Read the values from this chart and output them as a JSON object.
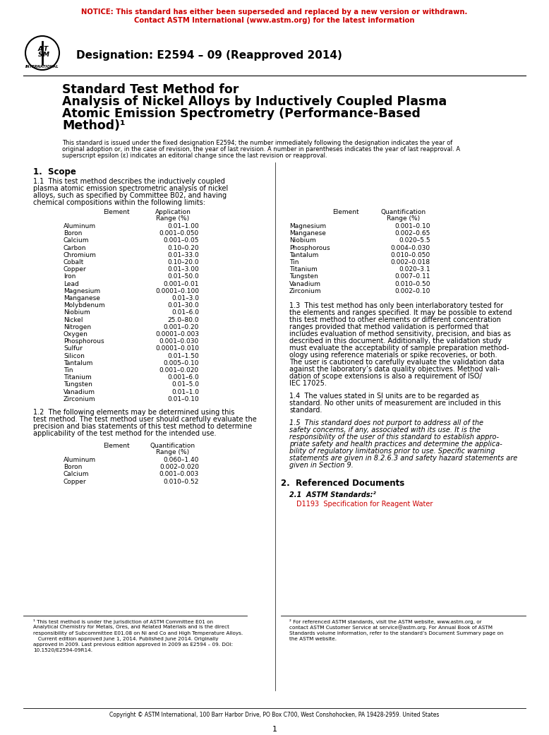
{
  "notice_text_line1": "NOTICE: This standard has either been superseded and replaced by a new version or withdrawn.",
  "notice_text_line2": "Contact ASTM International (www.astm.org) for the latest information",
  "notice_color": "#CC0000",
  "designation_text": "Designation: E2594 – 09 (Reapproved 2014)",
  "title_line1": "Standard Test Method for",
  "title_line2": "Analysis of Nickel Alloys by Inductively Coupled Plasma",
  "title_line3": "Atomic Emission Spectrometry (Performance-Based",
  "title_line4": "Method)¹",
  "intro_lines": [
    "This standard is issued under the fixed designation E2594; the number immediately following the designation indicates the year of",
    "original adoption or, in the case of revision, the year of last revision. A number in parentheses indicates the year of last reapproval. A",
    "superscript epsilon (ε) indicates an editorial change since the last revision or reapproval."
  ],
  "section1_title": "1.  Scope",
  "s11_lines": [
    "1.1  This test method describes the inductively coupled",
    "plasma atomic emission spectrometric analysis of nickel",
    "alloys, such as specified by Committee B02, and having",
    "chemical compositions within the following limits:"
  ],
  "table1_data": [
    [
      "Aluminum",
      "0.01–1.00"
    ],
    [
      "Boron",
      "0.001–0.050"
    ],
    [
      "Calcium",
      "0.001–0.05"
    ],
    [
      "Carbon",
      "0.10–0.20"
    ],
    [
      "Chromium",
      "0.01–33.0"
    ],
    [
      "Cobalt",
      "0.10–20.0"
    ],
    [
      "Copper",
      "0.01–3.00"
    ],
    [
      "Iron",
      "0.01–50.0"
    ],
    [
      "Lead",
      "0.001–0.01"
    ],
    [
      "Magnesium",
      "0.0001–0.100"
    ],
    [
      "Manganese",
      "0.01–3.0"
    ],
    [
      "Molybdenum",
      "0.01–30.0"
    ],
    [
      "Niobium",
      "0.01–6.0"
    ],
    [
      "Nickel",
      "25.0–80.0"
    ],
    [
      "Nitrogen",
      "0.001–0.20"
    ],
    [
      "Oxygen",
      "0.0001–0.003"
    ],
    [
      "Phosphorous",
      "0.001–0.030"
    ],
    [
      "Sulfur",
      "0.0001–0.010"
    ],
    [
      "Silicon",
      "0.01–1.50"
    ],
    [
      "Tantalum",
      "0.005–0.10"
    ],
    [
      "Tin",
      "0.001–0.020"
    ],
    [
      "Titanium",
      "0.001–6.0"
    ],
    [
      "Tungsten",
      "0.01–5.0"
    ],
    [
      "Vanadium",
      "0.01–1.0"
    ],
    [
      "Zirconium",
      "0.01–0.10"
    ]
  ],
  "s12_lines": [
    "1.2  The following elements may be determined using this",
    "test method. The test method user should carefully evaluate the",
    "precision and bias statements of this test method to determine",
    "applicability of the test method for the intended use."
  ],
  "table2_data": [
    [
      "Aluminum",
      "0.060–1.40"
    ],
    [
      "Boron",
      "0.002–0.020"
    ],
    [
      "Calcium",
      "0.001–0.003"
    ],
    [
      "Copper",
      "0.010–0.52"
    ]
  ],
  "table3_data": [
    [
      "Magnesium",
      "0.001–0.10"
    ],
    [
      "Manganese",
      "0.002–0.65"
    ],
    [
      "Niobium",
      "0.020–5.5"
    ],
    [
      "Phosphorous",
      "0.004–0.030"
    ],
    [
      "Tantalum",
      "0.010–0.050"
    ],
    [
      "Tin",
      "0.002–0.018"
    ],
    [
      "Titanium",
      "0.020–3.1"
    ],
    [
      "Tungsten",
      "0.007–0.11"
    ],
    [
      "Vanadium",
      "0.010–0.50"
    ],
    [
      "Zirconium",
      "0.002–0.10"
    ]
  ],
  "s13_lines": [
    "1.3  This test method has only been interlaboratory tested for",
    "the elements and ranges specified. It may be possible to extend",
    "this test method to other elements or different concentration",
    "ranges provided that method validation is performed that",
    "includes evaluation of method sensitivity, precision, and bias as",
    "described in this document. Additionally, the validation study",
    "must evaluate the acceptability of sample preparation method-",
    "ology using reference materials or spike recoveries, or both.",
    "The user is cautioned to carefully evaluate the validation data",
    "against the laboratory’s data quality objectives. Method vali-",
    "dation of scope extensions is also a requirement of ISO/",
    "IEC 17025."
  ],
  "s14_lines": [
    "1.4  The values stated in SI units are to be regarded as",
    "standard. No other units of measurement are included in this",
    "standard."
  ],
  "s15_lines": [
    "1.5  This standard does not purport to address all of the",
    "safety concerns, if any, associated with its use. It is the",
    "responsibility of the user of this standard to establish appro-",
    "priate safety and health practices and determine the applica-",
    "bility of regulatory limitations prior to use. Specific warning",
    "statements are given in 8.2.6.3 and safety hazard statements are",
    "given in Section 9."
  ],
  "section2_title": "2.  Referenced Documents",
  "section21_text": "2.1  ASTM Standards:²",
  "ref_text": "D1193  Specification for Reagent Water",
  "ref_color": "#CC0000",
  "fn1_lines": [
    "¹ This test method is under the jurisdiction of ASTM Committee E01 on",
    "Analytical Chemistry for Metals, Ores, and Related Materials and is the direct",
    "responsibility of Subcommittee E01.08 on Ni and Co and High Temperature Alloys.",
    "   Current edition approved June 1, 2014. Published June 2014. Originally",
    "approved in 2009. Last previous edition approved in 2009 as E2594 – 09. DOI:",
    "10.1520/E2594-09R14."
  ],
  "fn2_lines": [
    "² For referenced ASTM standards, visit the ASTM website, www.astm.org, or",
    "contact ASTM Customer Service at service@astm.org. For Annual Book of ASTM",
    "Standards volume information, refer to the standard’s Document Summary page on",
    "the ASTM website."
  ],
  "copyright_text": "Copyright © ASTM International, 100 Barr Harbor Drive, PO Box C700, West Conshohocken, PA 19428-2959. United States",
  "page_number": "1",
  "bg_color": "#FFFFFF",
  "text_color": "#000000",
  "body_fontsize": 7.0,
  "small_fontsize": 6.0,
  "title_fontsize": 12.5,
  "section_fontsize": 8.5,
  "table_fontsize": 6.5,
  "footnote_fontsize": 5.2
}
